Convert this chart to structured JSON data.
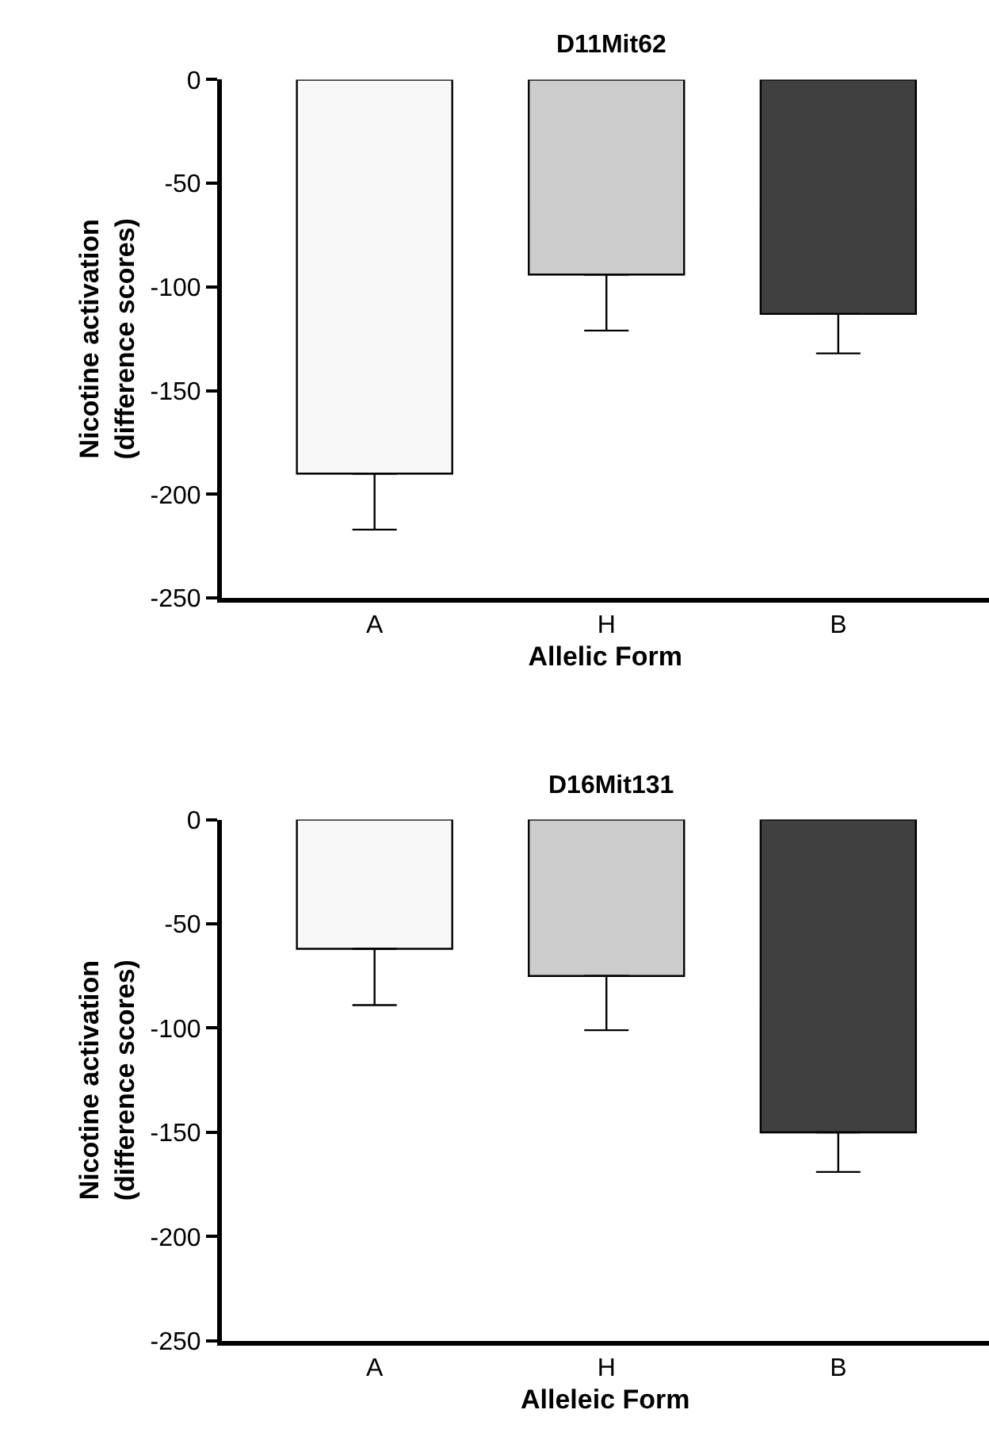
{
  "chart_data": [
    {
      "type": "bar",
      "title": "D11Mit62",
      "xlabel": "Allelic Form",
      "ylabel": "Nicotine activation\n(difference scores)",
      "categories": [
        "A",
        "H",
        "B"
      ],
      "values": [
        -190,
        -94,
        -113
      ],
      "colors": [
        "#f8f8f8",
        "#cccccc",
        "#404040"
      ],
      "errors": [
        [
          -217,
          -190
        ],
        [
          -121,
          -94
        ],
        [
          -132,
          -113
        ]
      ],
      "ylim": [
        -250,
        0
      ],
      "yticks": [
        -250,
        -200,
        -150,
        -100,
        -50,
        0
      ]
    },
    {
      "type": "bar",
      "title": "D16Mit131",
      "xlabel": "Alleleic Form",
      "ylabel": "Nicotine activation\n(difference scores)",
      "categories": [
        "A",
        "H",
        "B"
      ],
      "values": [
        -62,
        -75,
        -150
      ],
      "colors": [
        "#f8f8f8",
        "#cccccc",
        "#404040"
      ],
      "errors": [
        [
          -89,
          -62
        ],
        [
          -101,
          -75
        ],
        [
          -169,
          -150
        ]
      ],
      "ylim": [
        -250,
        0
      ],
      "yticks": [
        -250,
        -200,
        -150,
        -100,
        -50,
        0
      ]
    }
  ]
}
